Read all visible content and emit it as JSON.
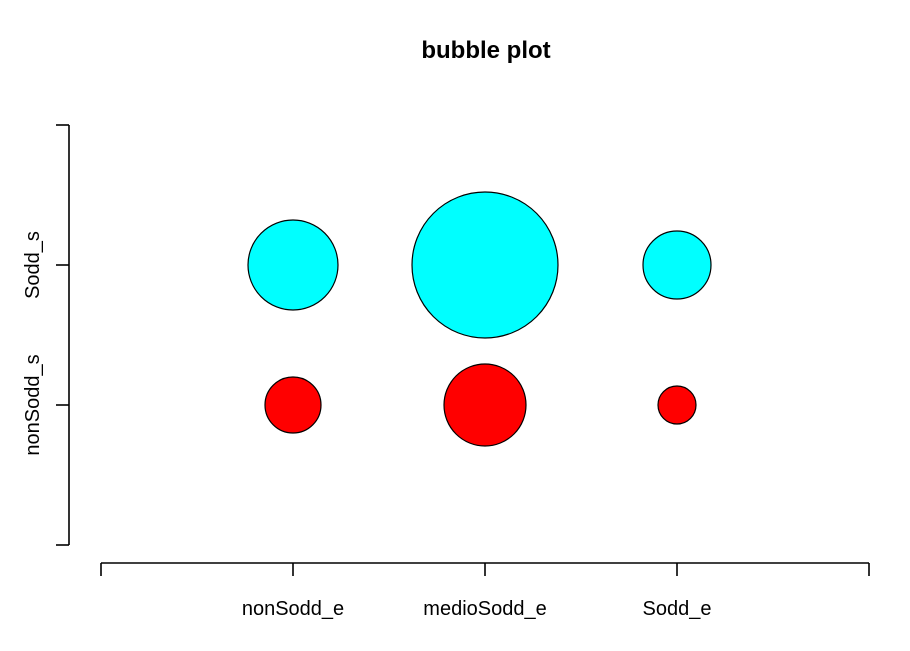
{
  "chart_data": {
    "type": "scatter",
    "title": "bubble plot",
    "xlabel": "",
    "ylabel": "",
    "x_categories": [
      "nonSodd_e",
      "medioSodd_e",
      "Sodd_e"
    ],
    "y_categories": [
      "nonSodd_s",
      "Sodd_s"
    ],
    "xlim": [
      0,
      4
    ],
    "ylim": [
      0,
      3
    ],
    "grid": false,
    "legend": "none",
    "series": [
      {
        "category": "Sodd_s",
        "color": "#00ffff",
        "points": [
          {
            "x": "nonSodd_e",
            "size": 45
          },
          {
            "x": "medioSodd_e",
            "size": 73
          },
          {
            "x": "Sodd_e",
            "size": 34
          }
        ]
      },
      {
        "category": "nonSodd_s",
        "color": "#ff0000",
        "points": [
          {
            "x": "nonSodd_e",
            "size": 28
          },
          {
            "x": "medioSodd_e",
            "size": 41
          },
          {
            "x": "Sodd_e",
            "size": 19
          }
        ]
      }
    ]
  }
}
